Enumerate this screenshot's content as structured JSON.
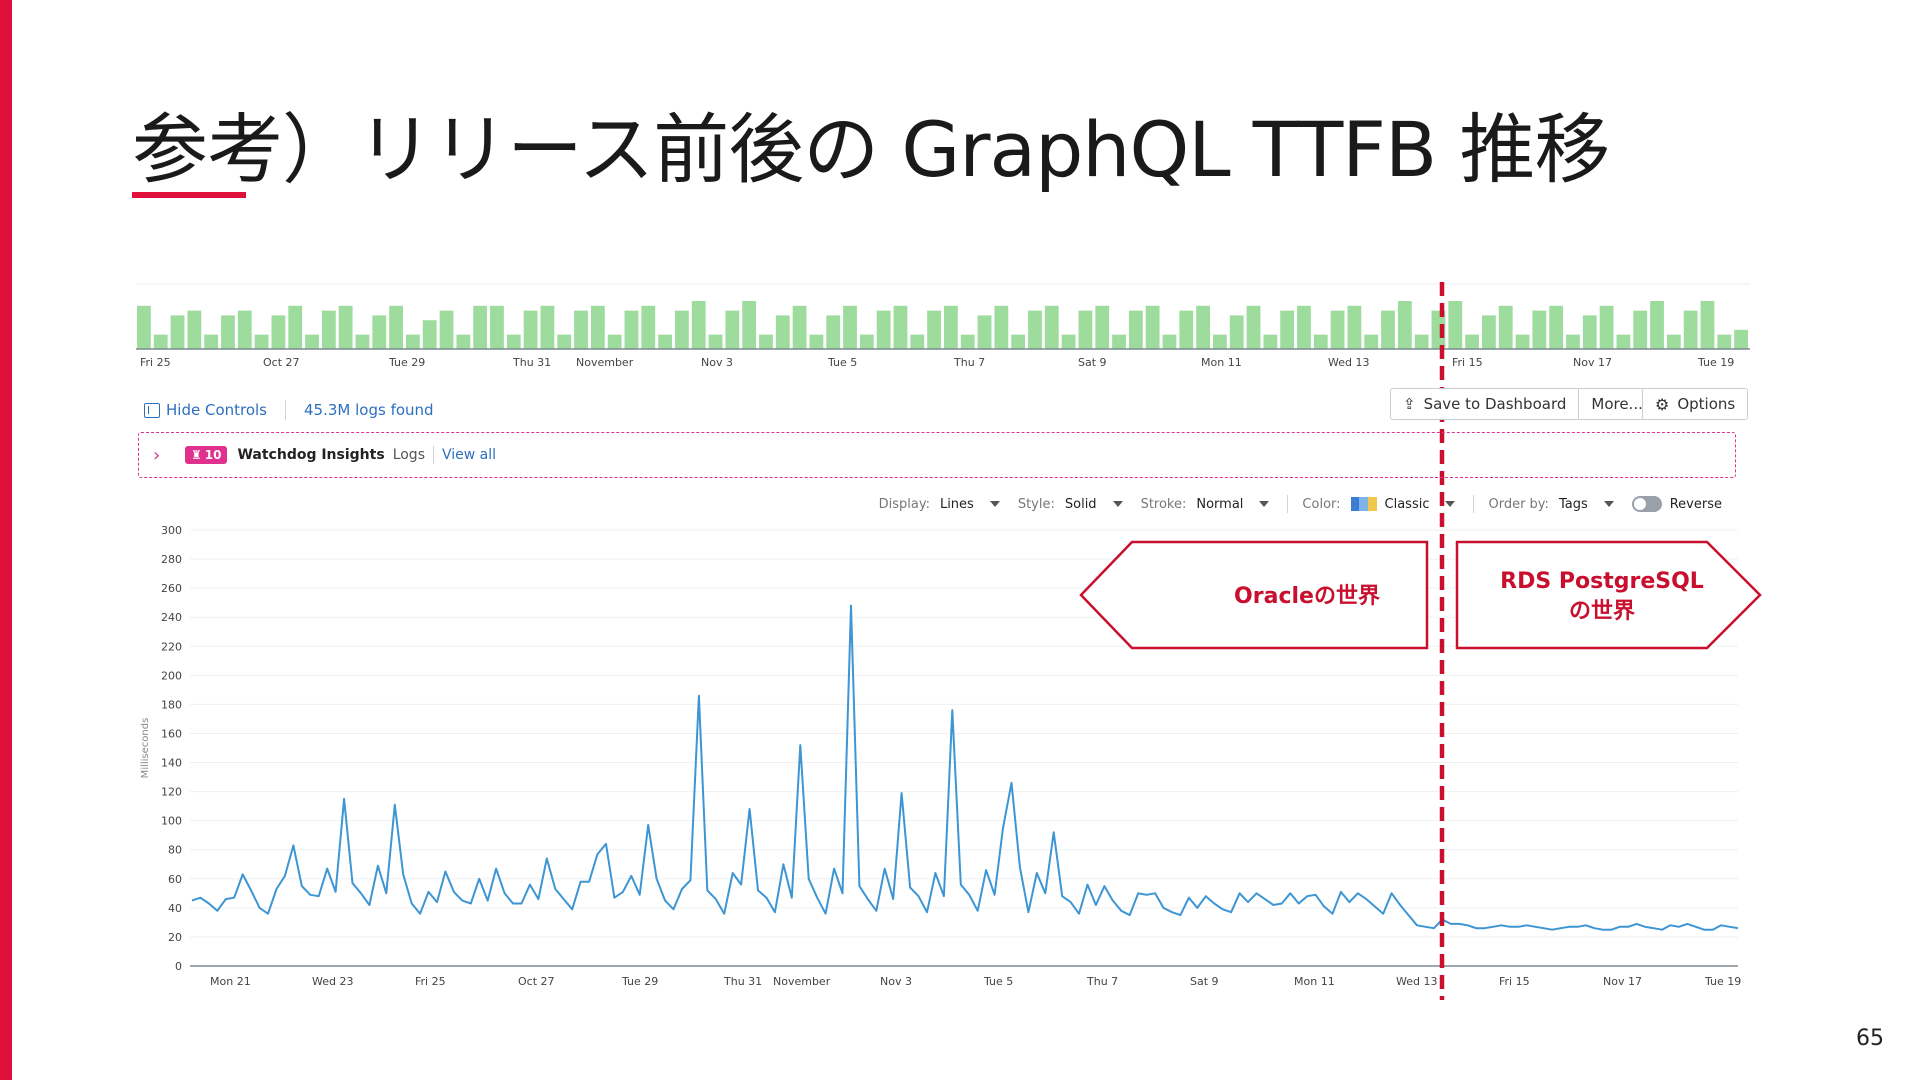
{
  "slide": {
    "title": "参考）リリース前後の GraphQL TTFB 推移",
    "page_number": "65",
    "accent_color": "#e0103c"
  },
  "controls": {
    "hide_controls": "Hide Controls",
    "logs_found": "45.3M logs found",
    "save_to_dashboard": "Save to Dashboard",
    "more": "More...",
    "options": "Options"
  },
  "watchdog": {
    "count": "10",
    "title": "Watchdog Insights",
    "logs_label": "Logs",
    "view_all": "View all"
  },
  "display_options": {
    "display_label": "Display:",
    "display_value": "Lines",
    "style_label": "Style:",
    "style_value": "Solid",
    "stroke_label": "Stroke:",
    "stroke_value": "Normal",
    "color_label": "Color:",
    "color_value": "Classic",
    "order_label": "Order by:",
    "order_value": "Tags",
    "reverse_label": "Reverse"
  },
  "annotations": {
    "left_label": "Oracleの世界",
    "right_label_line1": "RDS PostgreSQL",
    "right_label_line2": "の世界",
    "divider_color": "#c8102e"
  },
  "chart_data": [
    {
      "type": "bar",
      "name": "timeline-overview",
      "bar_color": "#9edc9e",
      "tick_labels": [
        "Fri 25",
        "Oct 27",
        "Tue 29",
        "Thu 31",
        "November",
        "Nov 3",
        "Tue 5",
        "Thu 7",
        "Sat 9",
        "Mon 11",
        "Wed 13",
        "Fri 15",
        "Nov 17",
        "Tue 19"
      ],
      "values": [
        9,
        3,
        7,
        8,
        3,
        7,
        8,
        3,
        7,
        9,
        3,
        8,
        9,
        3,
        7,
        9,
        3,
        6,
        8,
        3,
        9,
        9,
        3,
        8,
        9,
        3,
        8,
        9,
        3,
        8,
        9,
        3,
        8,
        10,
        3,
        8,
        10,
        3,
        7,
        9,
        3,
        7,
        9,
        3,
        8,
        9,
        3,
        8,
        9,
        3,
        7,
        9,
        3,
        8,
        9,
        3,
        8,
        9,
        3,
        8,
        9,
        3,
        8,
        9,
        3,
        7,
        9,
        3,
        8,
        9,
        3,
        8,
        9,
        3,
        8,
        10,
        3,
        8,
        10,
        3,
        7,
        9,
        3,
        8,
        9,
        3,
        7,
        9,
        3,
        8,
        10,
        3,
        8,
        10,
        3,
        4
      ]
    },
    {
      "type": "line",
      "ylabel": "Milliseconds",
      "ylim": [
        0,
        300
      ],
      "yticks": [
        0,
        20,
        40,
        60,
        80,
        100,
        120,
        140,
        160,
        180,
        200,
        220,
        240,
        260,
        280,
        300
      ],
      "x_tick_labels": [
        "Mon 21",
        "Wed 23",
        "Fri 25",
        "Oct 27",
        "Tue 29",
        "Thu 31",
        "November",
        "Nov 3",
        "Tue 5",
        "Thu 7",
        "Sat 9",
        "Mon 11",
        "Wed 13",
        "Fri 15",
        "Nov 17",
        "Tue 19"
      ],
      "line_color": "#3d95d4",
      "series": [
        {
          "values": [
            45,
            47,
            43,
            38,
            46,
            47,
            63,
            52,
            40,
            36,
            53,
            62,
            83,
            55,
            49,
            48,
            67,
            51,
            115,
            57,
            50,
            42,
            69,
            50,
            111,
            63,
            43,
            36,
            51,
            44,
            65,
            51,
            45,
            43,
            60,
            45,
            67,
            50,
            43,
            43,
            56,
            46,
            74,
            53,
            46,
            39,
            58,
            58,
            77,
            84,
            47,
            51,
            62,
            49,
            97,
            60,
            45,
            39,
            53,
            59,
            186,
            52,
            46,
            36,
            64,
            56,
            108,
            52,
            47,
            37,
            70,
            47,
            152,
            60,
            47,
            36,
            67,
            50,
            248,
            55,
            46,
            38,
            67,
            46,
            119,
            54,
            48,
            37,
            64,
            48,
            176,
            56,
            49,
            38,
            66,
            49,
            95,
            126,
            68,
            37,
            64,
            50,
            92,
            48,
            44,
            36,
            56,
            42,
            55,
            45,
            38,
            35,
            50,
            49,
            50,
            40,
            37,
            35,
            47,
            40,
            48,
            43,
            39,
            37,
            50,
            44,
            50,
            46,
            42,
            43,
            50,
            43,
            48,
            49,
            41,
            36,
            51,
            44,
            50,
            46,
            41,
            36,
            50,
            42,
            35,
            28,
            27,
            26,
            32,
            29,
            29,
            28,
            26,
            26,
            27,
            28,
            27,
            27,
            28,
            27,
            26,
            25,
            26,
            27,
            27,
            28,
            26,
            25,
            25,
            27,
            27,
            29,
            27,
            26,
            25,
            28,
            27,
            29,
            27,
            25,
            25,
            28,
            27,
            26
          ]
        }
      ]
    }
  ]
}
